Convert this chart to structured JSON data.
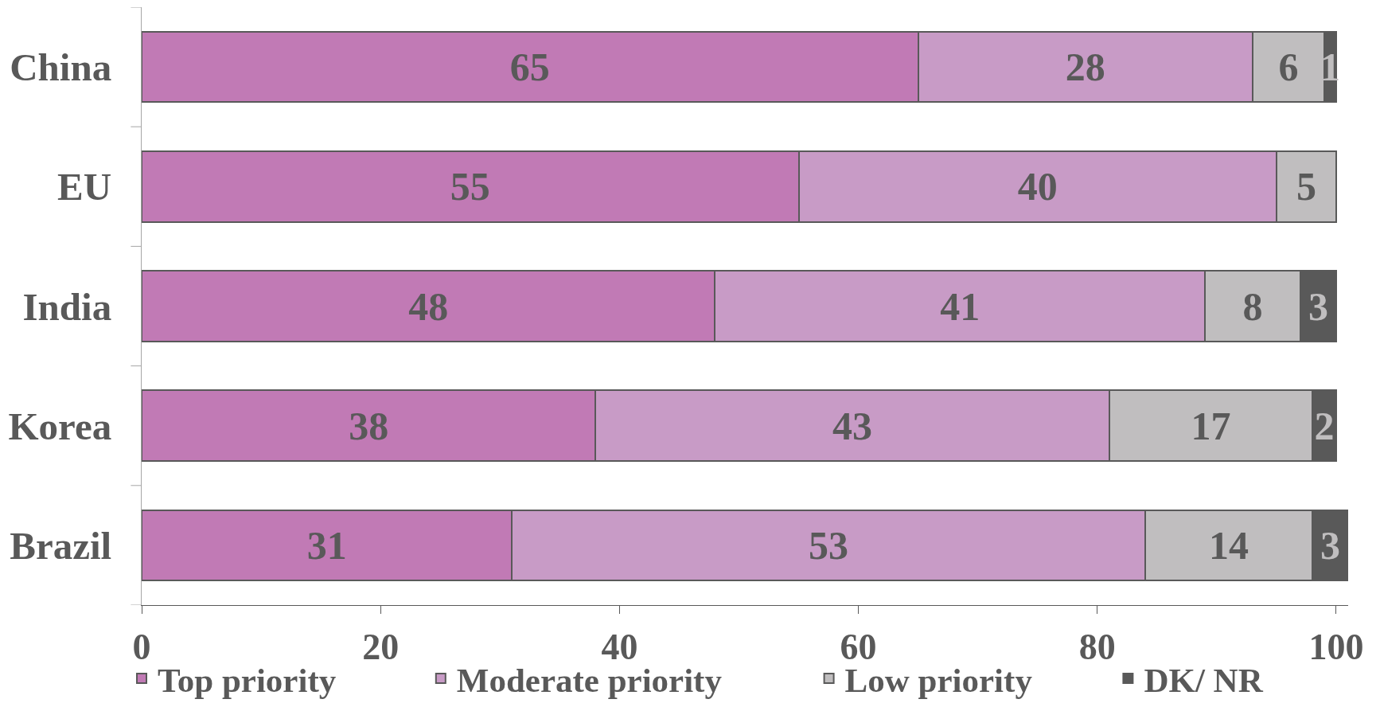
{
  "chart_data": {
    "type": "bar",
    "orientation": "horizontal",
    "stacked": true,
    "categories": [
      "China",
      "EU",
      "India",
      "Korea",
      "Brazil"
    ],
    "series": [
      {
        "name": "Top priority",
        "color": "#c17ab5",
        "values": [
          65,
          55,
          48,
          38,
          31
        ]
      },
      {
        "name": "Moderate priority",
        "color": "#c89bc6",
        "values": [
          28,
          40,
          41,
          43,
          53
        ]
      },
      {
        "name": "Low priority",
        "color": "#c0bebf",
        "values": [
          6,
          5,
          8,
          17,
          14
        ]
      },
      {
        "name": "DK/ NR",
        "color": "#595959",
        "values": [
          1,
          null,
          3,
          2,
          3
        ]
      }
    ],
    "xlim": [
      0,
      101
    ],
    "xticks": [
      0,
      20,
      40,
      60,
      80,
      100
    ],
    "data_labels": true,
    "legend": "bottom"
  }
}
